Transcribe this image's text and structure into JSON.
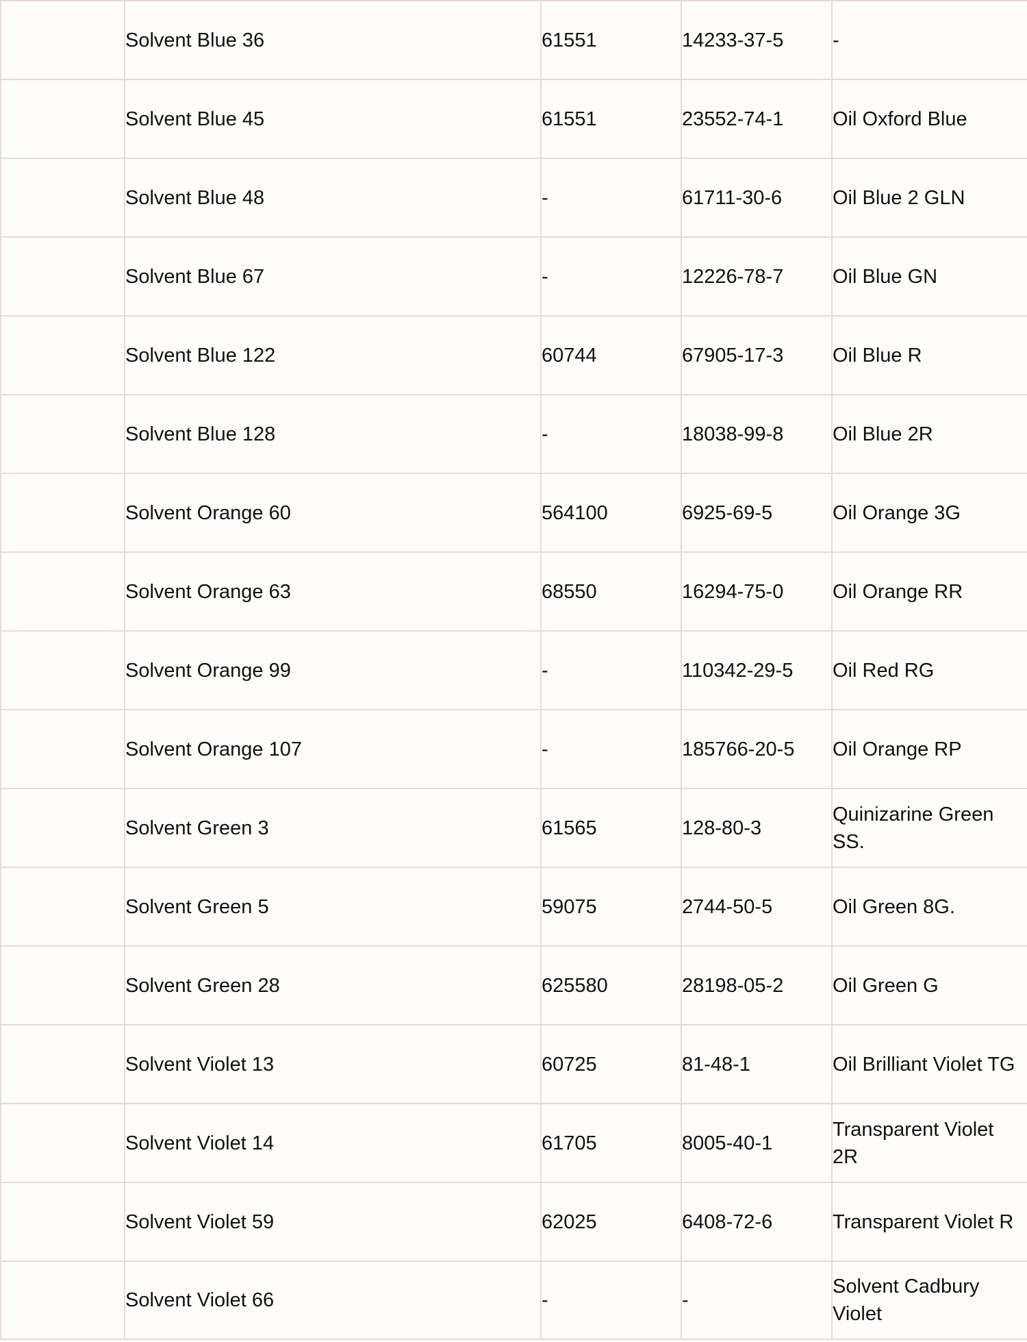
{
  "rows": [
    {
      "name": "Solvent Blue 36",
      "ci": "61551",
      "cas": "14233-37-5",
      "trade": "-",
      "color": "#2600ff"
    },
    {
      "name": "Solvent Blue 45",
      "ci": "61551",
      "cas": "23552-74-1",
      "trade": "Oil Oxford Blue",
      "color": "#001a99"
    },
    {
      "name": "Solvent Blue 48",
      "ci": "-",
      "cas": "61711-30-6",
      "trade": "Oil Blue 2 GLN",
      "color": "#6ddfdb"
    },
    {
      "name": "Solvent Blue 67",
      "ci": "-",
      "cas": "12226-78-7",
      "trade": "Oil Blue GN",
      "color": "#009cc7"
    },
    {
      "name": "Solvent Blue 122",
      "ci": "60744",
      "cas": "67905-17-3",
      "trade": "Oil Blue R",
      "color": "#0000cc"
    },
    {
      "name": "Solvent Blue 128",
      "ci": "-",
      "cas": "18038-99-8",
      "trade": "Oil Blue 2R",
      "color": "#0033cc"
    },
    {
      "name": "Solvent Orange 60",
      "ci": "564100",
      "cas": "6925-69-5",
      "trade": "Oil Orange 3G",
      "color": "#f9994c"
    },
    {
      "name": "Solvent Orange 63",
      "ci": "68550",
      "cas": "16294-75-0",
      "trade": "Oil Orange RR",
      "color": "#ff9900"
    },
    {
      "name": "Solvent Orange 99",
      "ci": "-",
      "cas": "110342-29-5",
      "trade": "Oil Red RG",
      "color": "#d1834a"
    },
    {
      "name": "Solvent Orange 107",
      "ci": "-",
      "cas": "185766-20-5",
      "trade": "Oil Orange RP",
      "color": "#ff6600"
    },
    {
      "name": "Solvent Green 3",
      "ci": "61565",
      "cas": "128-80-3",
      "trade": "Quinizarine Green SS.",
      "color": "#008000"
    },
    {
      "name": "Solvent Green 5",
      "ci": "59075",
      "cas": "2744-50-5",
      "trade": "Oil Green 8G.",
      "color": "#009900"
    },
    {
      "name": "Solvent Green 28",
      "ci": "625580",
      "cas": "28198-05-2",
      "trade": "Oil Green G",
      "color": "#00b04f"
    },
    {
      "name": "Solvent Violet 13",
      "ci": "60725",
      "cas": "81-48-1",
      "trade": "Oil Brilliant Violet TG",
      "color": "#7711f0"
    },
    {
      "name": "Solvent Violet 14",
      "ci": "61705",
      "cas": "8005-40-1",
      "trade": "Transparent Violet 2R",
      "color": "#de007a"
    },
    {
      "name": "Solvent Violet 59",
      "ci": "62025",
      "cas": "6408-72-6",
      "trade": "Transparent Violet R",
      "color": "#a30066"
    },
    {
      "name": "Solvent Violet 66",
      "ci": "-",
      "cas": "-",
      "trade": "Solvent Cadbury Violet",
      "color": "#a020d8"
    }
  ]
}
